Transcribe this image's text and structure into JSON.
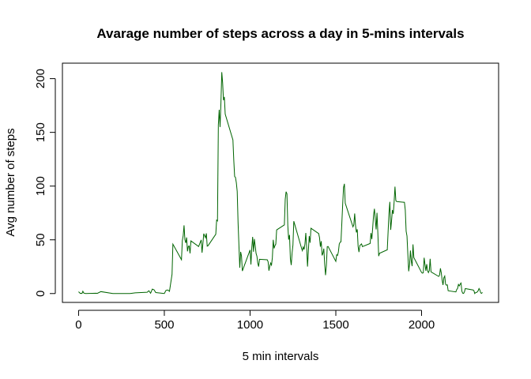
{
  "chart_data": {
    "type": "line",
    "title": "Avarage number of steps across a day in 5-mins intervals",
    "x_label": "5 min intervals",
    "y_label": "Avg number of steps",
    "color": "#006400",
    "x": [
      0,
      10,
      15,
      20,
      25,
      30,
      40,
      100,
      110,
      130,
      200,
      230,
      300,
      330,
      400,
      410,
      420,
      430,
      440,
      450,
      500,
      510,
      520,
      530,
      545,
      550,
      600,
      605,
      610,
      615,
      620,
      625,
      630,
      635,
      640,
      645,
      650,
      655,
      700,
      715,
      720,
      730,
      740,
      745,
      750,
      755,
      800,
      805,
      810,
      815,
      820,
      825,
      830,
      835,
      840,
      845,
      850,
      855,
      900,
      905,
      910,
      915,
      920,
      925,
      930,
      935,
      940,
      945,
      950,
      955,
      1000,
      1005,
      1010,
      1015,
      1020,
      1025,
      1030,
      1035,
      1040,
      1045,
      1050,
      1055,
      1100,
      1105,
      1110,
      1115,
      1120,
      1125,
      1130,
      1135,
      1140,
      1145,
      1150,
      1155,
      1200,
      1205,
      1210,
      1215,
      1220,
      1225,
      1230,
      1235,
      1240,
      1245,
      1250,
      1255,
      1300,
      1305,
      1310,
      1315,
      1320,
      1325,
      1330,
      1335,
      1340,
      1345,
      1350,
      1355,
      1400,
      1405,
      1410,
      1415,
      1420,
      1425,
      1430,
      1435,
      1440,
      1445,
      1450,
      1455,
      1500,
      1505,
      1510,
      1515,
      1520,
      1525,
      1530,
      1535,
      1540,
      1545,
      1550,
      1555,
      1600,
      1605,
      1610,
      1615,
      1620,
      1625,
      1630,
      1635,
      1640,
      1645,
      1650,
      1655,
      1700,
      1705,
      1710,
      1715,
      1720,
      1725,
      1730,
      1735,
      1740,
      1745,
      1750,
      1755,
      1800,
      1805,
      1810,
      1815,
      1820,
      1825,
      1830,
      1835,
      1840,
      1845,
      1850,
      1855,
      1900,
      1905,
      1910,
      1915,
      1920,
      1925,
      1930,
      1935,
      1940,
      1945,
      1950,
      1955,
      2000,
      2005,
      2010,
      2015,
      2020,
      2025,
      2030,
      2035,
      2040,
      2045,
      2050,
      2055,
      2100,
      2105,
      2110,
      2115,
      2120,
      2125,
      2130,
      2135,
      2140,
      2145,
      2150,
      2155,
      2200,
      2205,
      2210,
      2215,
      2220,
      2225,
      2230,
      2235,
      2240,
      2245,
      2250,
      2255,
      2300,
      2305,
      2310,
      2315,
      2320,
      2325,
      2330,
      2335,
      2340,
      2345,
      2350,
      2355
    ],
    "values": [
      1.7,
      0.1,
      0.2,
      0.1,
      2.1,
      0.5,
      0,
      0.3,
      0.2,
      1.8,
      0,
      0,
      0,
      0.7,
      1.2,
      2.6,
      0.3,
      4.1,
      3.5,
      0.9,
      0,
      3,
      3.3,
      2.1,
      18,
      46,
      31.5,
      49.3,
      53.8,
      63.5,
      50,
      47.1,
      52.2,
      39.3,
      44,
      44.2,
      37.4,
      49,
      43.8,
      49.9,
      38,
      55.7,
      51.9,
      56,
      44.1,
      44.5,
      55.2,
      68.3,
      67.6,
      157,
      171,
      155,
      177,
      206,
      196,
      180,
      183,
      167,
      143,
      124,
      109,
      108,
      103,
      95,
      66,
      45,
      24,
      38.8,
      35,
      21,
      40.6,
      27,
      42.4,
      52.7,
      38.9,
      50.8,
      44.3,
      37.4,
      34.7,
      28.3,
      25.1,
      31.9,
      31.4,
      29.7,
      21.3,
      25.5,
      28.4,
      26.5,
      33.4,
      50,
      42,
      44.6,
      46,
      59.2,
      63.9,
      87.7,
      94.8,
      92.8,
      63.4,
      50.2,
      54.5,
      32.4,
      26.5,
      37.7,
      45.1,
      67.3,
      42.3,
      39.9,
      43.3,
      41,
      46.2,
      56.4,
      42.8,
      25.1,
      40,
      53.5,
      47.3,
      60.8,
      55.8,
      52,
      43.6,
      48.7,
      35.5,
      37.5,
      41.8,
      27.5,
      17.1,
      26.1,
      43.6,
      43.8,
      30,
      36.1,
      35.5,
      38.8,
      46,
      47.8,
      48.1,
      65.3,
      82.9,
      98.7,
      102.1,
      84,
      62.1,
      64.1,
      74.5,
      63.2,
      56.9,
      59.8,
      43.9,
      38.6,
      44.7,
      45.5,
      46.2,
      43.7,
      46.6,
      56.3,
      50.7,
      61.2,
      72.7,
      78.9,
      68.9,
      59.7,
      75.1,
      56.5,
      34.8,
      37.5,
      40.7,
      58,
      74.7,
      85.3,
      59.3,
      67.8,
      77.7,
      74.2,
      85.3,
      99.5,
      86.6,
      85.6,
      84.9,
      77.8,
      58,
      53.4,
      36.3,
      20.7,
      27.4,
      40,
      30.2,
      25.5,
      45.7,
      33.5,
      19.6,
      19,
      19.3,
      33.3,
      26.8,
      21.2,
      27.3,
      21.3,
      19.5,
      21.3,
      32.3,
      20.2,
      15.9,
      17.2,
      23.5,
      19.2,
      12.5,
      8,
      14.7,
      16.3,
      8.7,
      7.8,
      8.1,
      2.6,
      1.5,
      3.7,
      4.8,
      8.5,
      7.1,
      8.7,
      9.8,
      2.2,
      0.3,
      0.1,
      1.6,
      4.6,
      3.3,
      2.8,
      0,
      0.8,
      1,
      1.6,
      2.6,
      4.7,
      3.3,
      0.6,
      0.2,
      1.1
    ],
    "xlim": [
      -94.2,
      2449.2
    ],
    "ylim": [
      -8.25,
      214.4
    ],
    "xticks": [
      0,
      500,
      1000,
      1500,
      2000
    ],
    "yticks": [
      0,
      50,
      100,
      150,
      200
    ]
  }
}
